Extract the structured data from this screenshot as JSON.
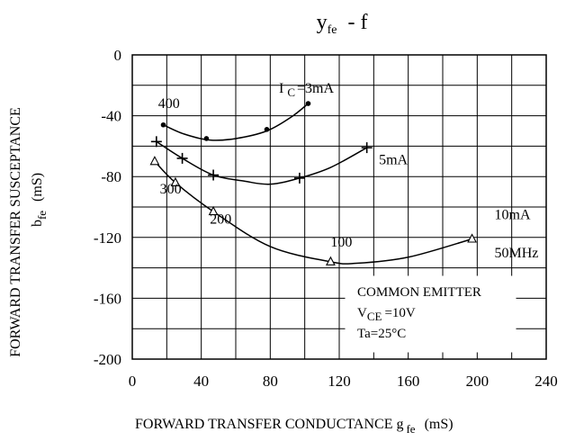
{
  "chart_data": {
    "type": "line",
    "title": "y fe - f",
    "title_main": "y",
    "title_sub": "fe",
    "title_rest": "- f",
    "xlabel": "FORWARD TRANSFER CONDUCTANCE g fe (mS)",
    "xlabel_main": "FORWARD TRANSFER CONDUCTANCE g",
    "xlabel_sub": "fe",
    "xlabel_unit": "(mS)",
    "ylabel": "FORWARD TRANSFER SUSCEPTANCE b fe (mS)",
    "ylabel_line1": "FORWARD TRANSFER SUSCEPTANCE",
    "ylabel_main": "b",
    "ylabel_sub": "fe",
    "ylabel_unit": "(mS)",
    "xlim": [
      0,
      240
    ],
    "ylim": [
      -200,
      0
    ],
    "xticks": [
      0,
      40,
      80,
      120,
      160,
      200,
      240
    ],
    "yticks": [
      0,
      -40,
      -80,
      -120,
      -160,
      -200
    ],
    "grid": true,
    "series": [
      {
        "name": "I C =3mA",
        "label_main": "I",
        "label_sub": "C",
        "label_rest": "=3mA",
        "marker": "dot",
        "points": [
          [
            18,
            -46
          ],
          [
            43,
            -55
          ],
          [
            78,
            -49
          ],
          [
            102,
            -32
          ]
        ],
        "curve": [
          [
            18,
            -46
          ],
          [
            30,
            -52
          ],
          [
            45,
            -56
          ],
          [
            60,
            -55
          ],
          [
            78,
            -50
          ],
          [
            92,
            -41
          ],
          [
            102,
            -32
          ]
        ]
      },
      {
        "name": "5mA",
        "marker": "plus",
        "points": [
          [
            14,
            -57
          ],
          [
            29,
            -68
          ],
          [
            47,
            -79
          ],
          [
            97,
            -81
          ],
          [
            136,
            -61
          ]
        ],
        "curve": [
          [
            14,
            -57
          ],
          [
            29,
            -68
          ],
          [
            47,
            -79
          ],
          [
            65,
            -83
          ],
          [
            80,
            -85
          ],
          [
            97,
            -81
          ],
          [
            115,
            -74
          ],
          [
            136,
            -61
          ]
        ]
      },
      {
        "name": "10mA",
        "marker": "triangle",
        "points": [
          [
            13,
            -70
          ],
          [
            25,
            -84
          ],
          [
            47,
            -103
          ],
          [
            115,
            -136
          ],
          [
            197,
            -121
          ]
        ],
        "curve": [
          [
            13,
            -70
          ],
          [
            25,
            -84
          ],
          [
            47,
            -103
          ],
          [
            80,
            -126
          ],
          [
            115,
            -136
          ],
          [
            130,
            -137
          ],
          [
            160,
            -133
          ],
          [
            197,
            -121
          ]
        ]
      }
    ],
    "annotations": [
      {
        "text": "400",
        "x": 15,
        "y": -35
      },
      {
        "text": "300",
        "x": 16,
        "y": -91
      },
      {
        "text": "200",
        "x": 45,
        "y": -111
      },
      {
        "text": "100",
        "x": 115,
        "y": -126
      },
      {
        "text": "50MHz",
        "x": 210,
        "y": -133
      },
      {
        "text": "5mA",
        "x": 143,
        "y": -72
      },
      {
        "text": "10mA",
        "x": 210,
        "y": -108
      }
    ],
    "legend_box": {
      "line1": "COMMON EMITTER",
      "line2_main": "V",
      "line2_sub": "CE",
      "line2_rest": "=10V",
      "line3": "Ta=25°C"
    }
  }
}
